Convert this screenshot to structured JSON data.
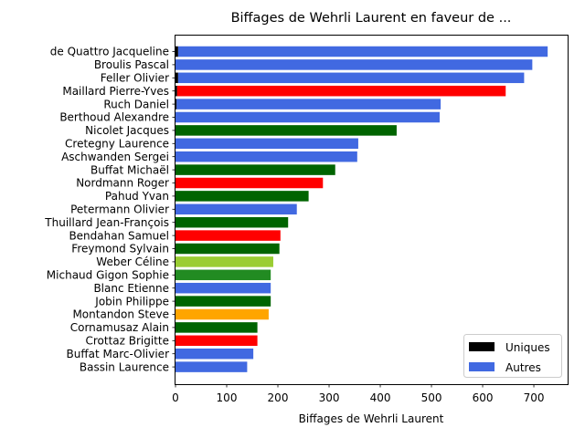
{
  "chart_data": {
    "type": "bar",
    "orientation": "horizontal",
    "title": "Biffages de Wehrli Laurent en faveur de ...",
    "xlabel": "Biffages de Wehrli Laurent",
    "ylabel": "",
    "xlim": [
      0,
      766
    ],
    "xticks": [
      "0",
      "100",
      "200",
      "300",
      "400",
      "500",
      "600",
      "700"
    ],
    "grid": false,
    "legend": {
      "placement": "lower-right",
      "entries": [
        {
          "label": "Uniques",
          "color": "#000000"
        },
        {
          "label": "Autres",
          "color": "#4169e1"
        }
      ]
    },
    "categories": [
      "de Quattro Jacqueline",
      "Broulis Pascal",
      "Feller Olivier",
      "Maillard Pierre-Yves",
      "Ruch Daniel",
      "Berthoud Alexandre",
      "Nicolet Jacques",
      "Cretegny Laurence",
      "Aschwanden Sergei",
      "Buffat Michaël",
      "Nordmann Roger",
      "Pahud Yvan",
      "Petermann Olivier",
      "Thuillard Jean-François",
      "Bendahan Samuel",
      "Freymond Sylvain",
      "Weber Céline",
      "Michaud Gigon Sophie",
      "Blanc Etienne",
      "Jobin Philippe",
      "Montandon Steve",
      "Cornamusaz Alain",
      "Crottaz Brigitte",
      "Buffat Marc-Olivier",
      "Bassin Laurence"
    ],
    "series": [
      {
        "name": "Uniques",
        "values": [
          5,
          0,
          5,
          3,
          2,
          0,
          0,
          0,
          0,
          0,
          0,
          0,
          0,
          0,
          0,
          0,
          0,
          0,
          0,
          0,
          0,
          0,
          0,
          0,
          0
        ]
      },
      {
        "name": "Autres",
        "values": [
          722,
          697,
          676,
          642,
          516,
          516,
          432,
          357,
          355,
          312,
          288,
          260,
          237,
          220,
          205,
          203,
          191,
          186,
          186,
          186,
          182,
          160,
          160,
          152,
          140
        ]
      }
    ],
    "bar_colors": [
      "#4169e1",
      "#4169e1",
      "#4169e1",
      "#ff0000",
      "#4169e1",
      "#4169e1",
      "#006400",
      "#4169e1",
      "#4169e1",
      "#006400",
      "#ff0000",
      "#006400",
      "#4169e1",
      "#006400",
      "#ff0000",
      "#006400",
      "#9acd32",
      "#228b22",
      "#4169e1",
      "#006400",
      "#ffa500",
      "#006400",
      "#ff0000",
      "#4169e1",
      "#4169e1"
    ]
  }
}
